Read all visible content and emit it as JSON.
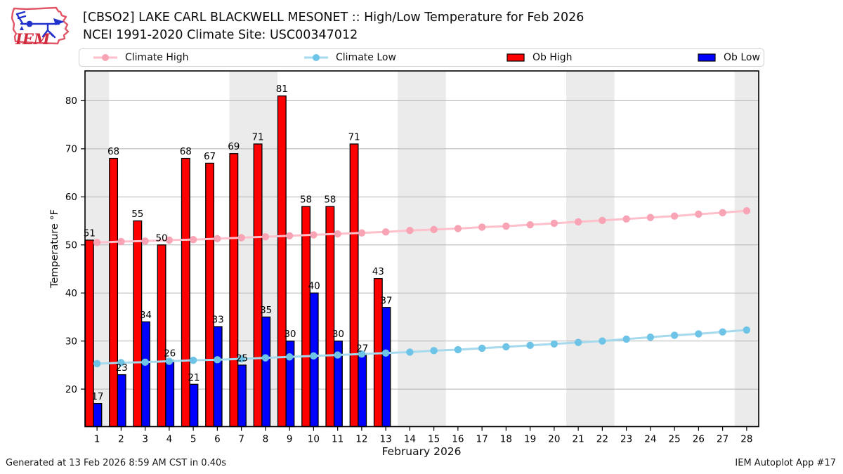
{
  "header": {
    "title_line1": "[CBSO2] LAKE CARL BLACKWELL MESONET :: High/Low Temperature for Feb 2026",
    "title_line2": "NCEI 1991-2020 Climate Site: USC00347012",
    "logo_text": "IEM"
  },
  "legend": {
    "items": [
      {
        "label": "Climate High",
        "swatch": "line",
        "color": "#ffbfcb",
        "marker_color": "#f8a4b4"
      },
      {
        "label": "Climate Low",
        "swatch": "line",
        "color": "#a5daee",
        "marker_color": "#6ec4e6"
      },
      {
        "label": "Ob High",
        "swatch": "rect",
        "color": "#ff0000"
      },
      {
        "label": "Ob Low",
        "swatch": "rect",
        "color": "#0000ff"
      }
    ]
  },
  "chart_data": {
    "type": "bar",
    "title": "[CBSO2] LAKE CARL BLACKWELL MESONET :: High/Low Temperature for Feb 2026",
    "subtitle": "NCEI 1991-2020 Climate Site: USC00347012",
    "xlabel": "February 2026",
    "ylabel": "Temperature °F",
    "x": [
      1,
      2,
      3,
      4,
      5,
      6,
      7,
      8,
      9,
      10,
      11,
      12,
      13,
      14,
      15,
      16,
      17,
      18,
      19,
      20,
      21,
      22,
      23,
      24,
      25,
      26,
      27,
      28
    ],
    "yticks": [
      20,
      30,
      40,
      50,
      60,
      70,
      80
    ],
    "ylim": [
      12.2,
      86.2
    ],
    "grid": "horizontal",
    "legend_position": "top",
    "weekend_bands": [
      [
        1,
        1
      ],
      [
        7,
        8
      ],
      [
        14,
        15
      ],
      [
        21,
        22
      ],
      [
        28,
        28
      ]
    ],
    "series": [
      {
        "name": "Ob High",
        "type": "bar",
        "color": "#ff0000",
        "values": [
          51,
          68,
          55,
          50,
          68,
          67,
          69,
          71,
          81,
          58,
          58,
          71,
          43
        ]
      },
      {
        "name": "Ob Low",
        "type": "bar",
        "color": "#0000ff",
        "values": [
          17,
          23,
          34,
          26,
          21,
          33,
          25,
          35,
          30,
          40,
          30,
          27,
          37
        ]
      },
      {
        "name": "Climate High",
        "type": "line",
        "color": "#ffbfcb",
        "marker_color": "#f8a4b4",
        "values": [
          50.5,
          50.7,
          50.8,
          51.0,
          51.1,
          51.3,
          51.5,
          51.7,
          51.9,
          52.1,
          52.3,
          52.5,
          52.7,
          53.0,
          53.2,
          53.4,
          53.7,
          53.9,
          54.2,
          54.5,
          54.8,
          55.1,
          55.4,
          55.7,
          56.0,
          56.4,
          56.7,
          57.1
        ]
      },
      {
        "name": "Climate Low",
        "type": "line",
        "color": "#a5daee",
        "marker_color": "#6ec4e6",
        "values": [
          25.3,
          25.5,
          25.6,
          25.8,
          26.0,
          26.1,
          26.3,
          26.5,
          26.7,
          26.9,
          27.1,
          27.3,
          27.5,
          27.7,
          28.0,
          28.2,
          28.5,
          28.8,
          29.1,
          29.4,
          29.7,
          30.0,
          30.4,
          30.8,
          31.2,
          31.5,
          31.9,
          32.3
        ]
      }
    ],
    "colors": {
      "band": "#ebebeb",
      "grid": "#b3b3b3",
      "bar_edge": "#000000",
      "spine": "#000000"
    }
  },
  "footer": {
    "left": "Generated at 13 Feb 2026 8:59 AM CST in 0.40s",
    "right": "IEM Autoplot App #17"
  }
}
